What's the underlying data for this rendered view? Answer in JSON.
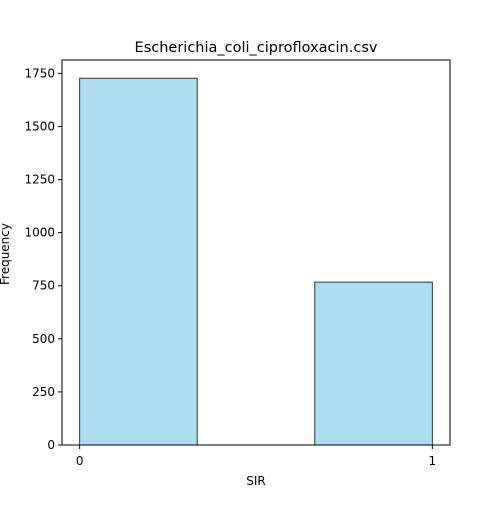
{
  "chart_data": {
    "type": "bar",
    "title": "Escherichia_coli_ciprofloxacin.csv",
    "xlabel": "SIR",
    "ylabel": "Frequency",
    "bins": [
      {
        "x_start": 0.0,
        "x_end": 0.333333,
        "value": 1727
      },
      {
        "x_start": 0.666667,
        "x_end": 1.0,
        "value": 767
      }
    ],
    "xlim": [
      -0.05,
      1.05
    ],
    "ylim": [
      0,
      1813
    ],
    "xticks": [
      0,
      1
    ],
    "yticks": [
      0,
      250,
      500,
      750,
      1000,
      1250,
      1500,
      1750
    ],
    "bar_color": "#a9ddef",
    "bar_edge_color": "#2a3a40",
    "grid": false
  }
}
